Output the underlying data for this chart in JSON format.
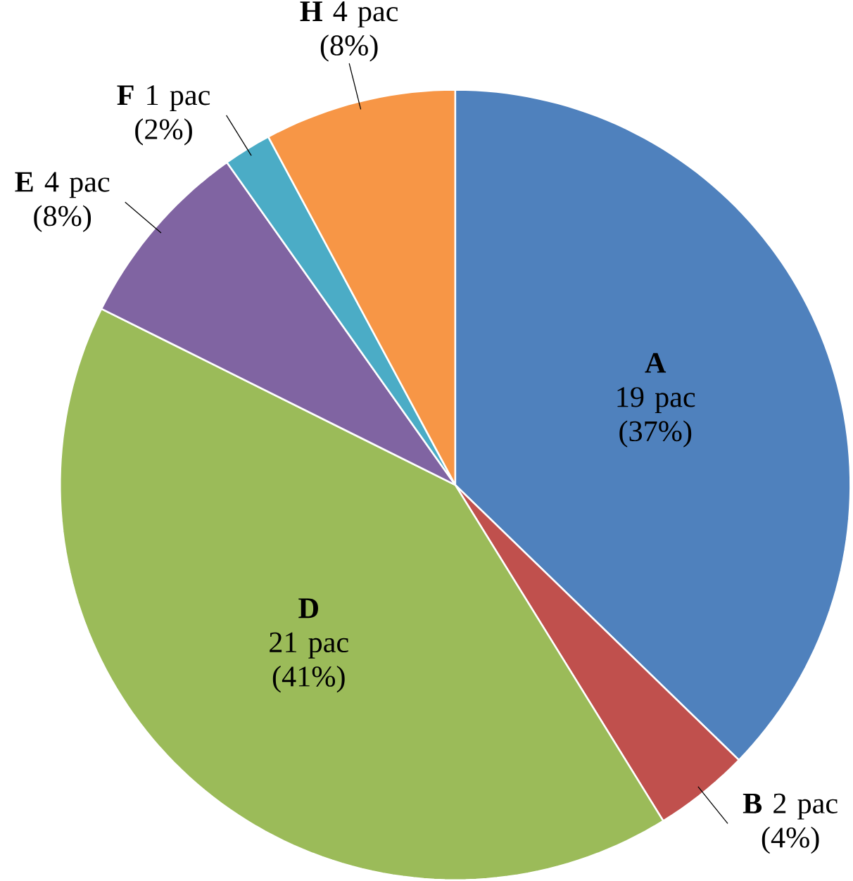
{
  "chart_data": {
    "type": "pie",
    "categories": [
      "A",
      "B",
      "D",
      "E",
      "F",
      "H"
    ],
    "values": [
      19,
      2,
      21,
      4,
      1,
      4
    ],
    "colors": [
      "#4f81bd",
      "#c0504d",
      "#9bbb59",
      "#8064a2",
      "#4bacc6",
      "#f79646"
    ],
    "value_labels": [
      "19 pac (37%)",
      "2 pac (4%)",
      "21 pac (41%)",
      "4 pac (8%)",
      "1 pac (2%)",
      "4 pac (8%)"
    ]
  }
}
